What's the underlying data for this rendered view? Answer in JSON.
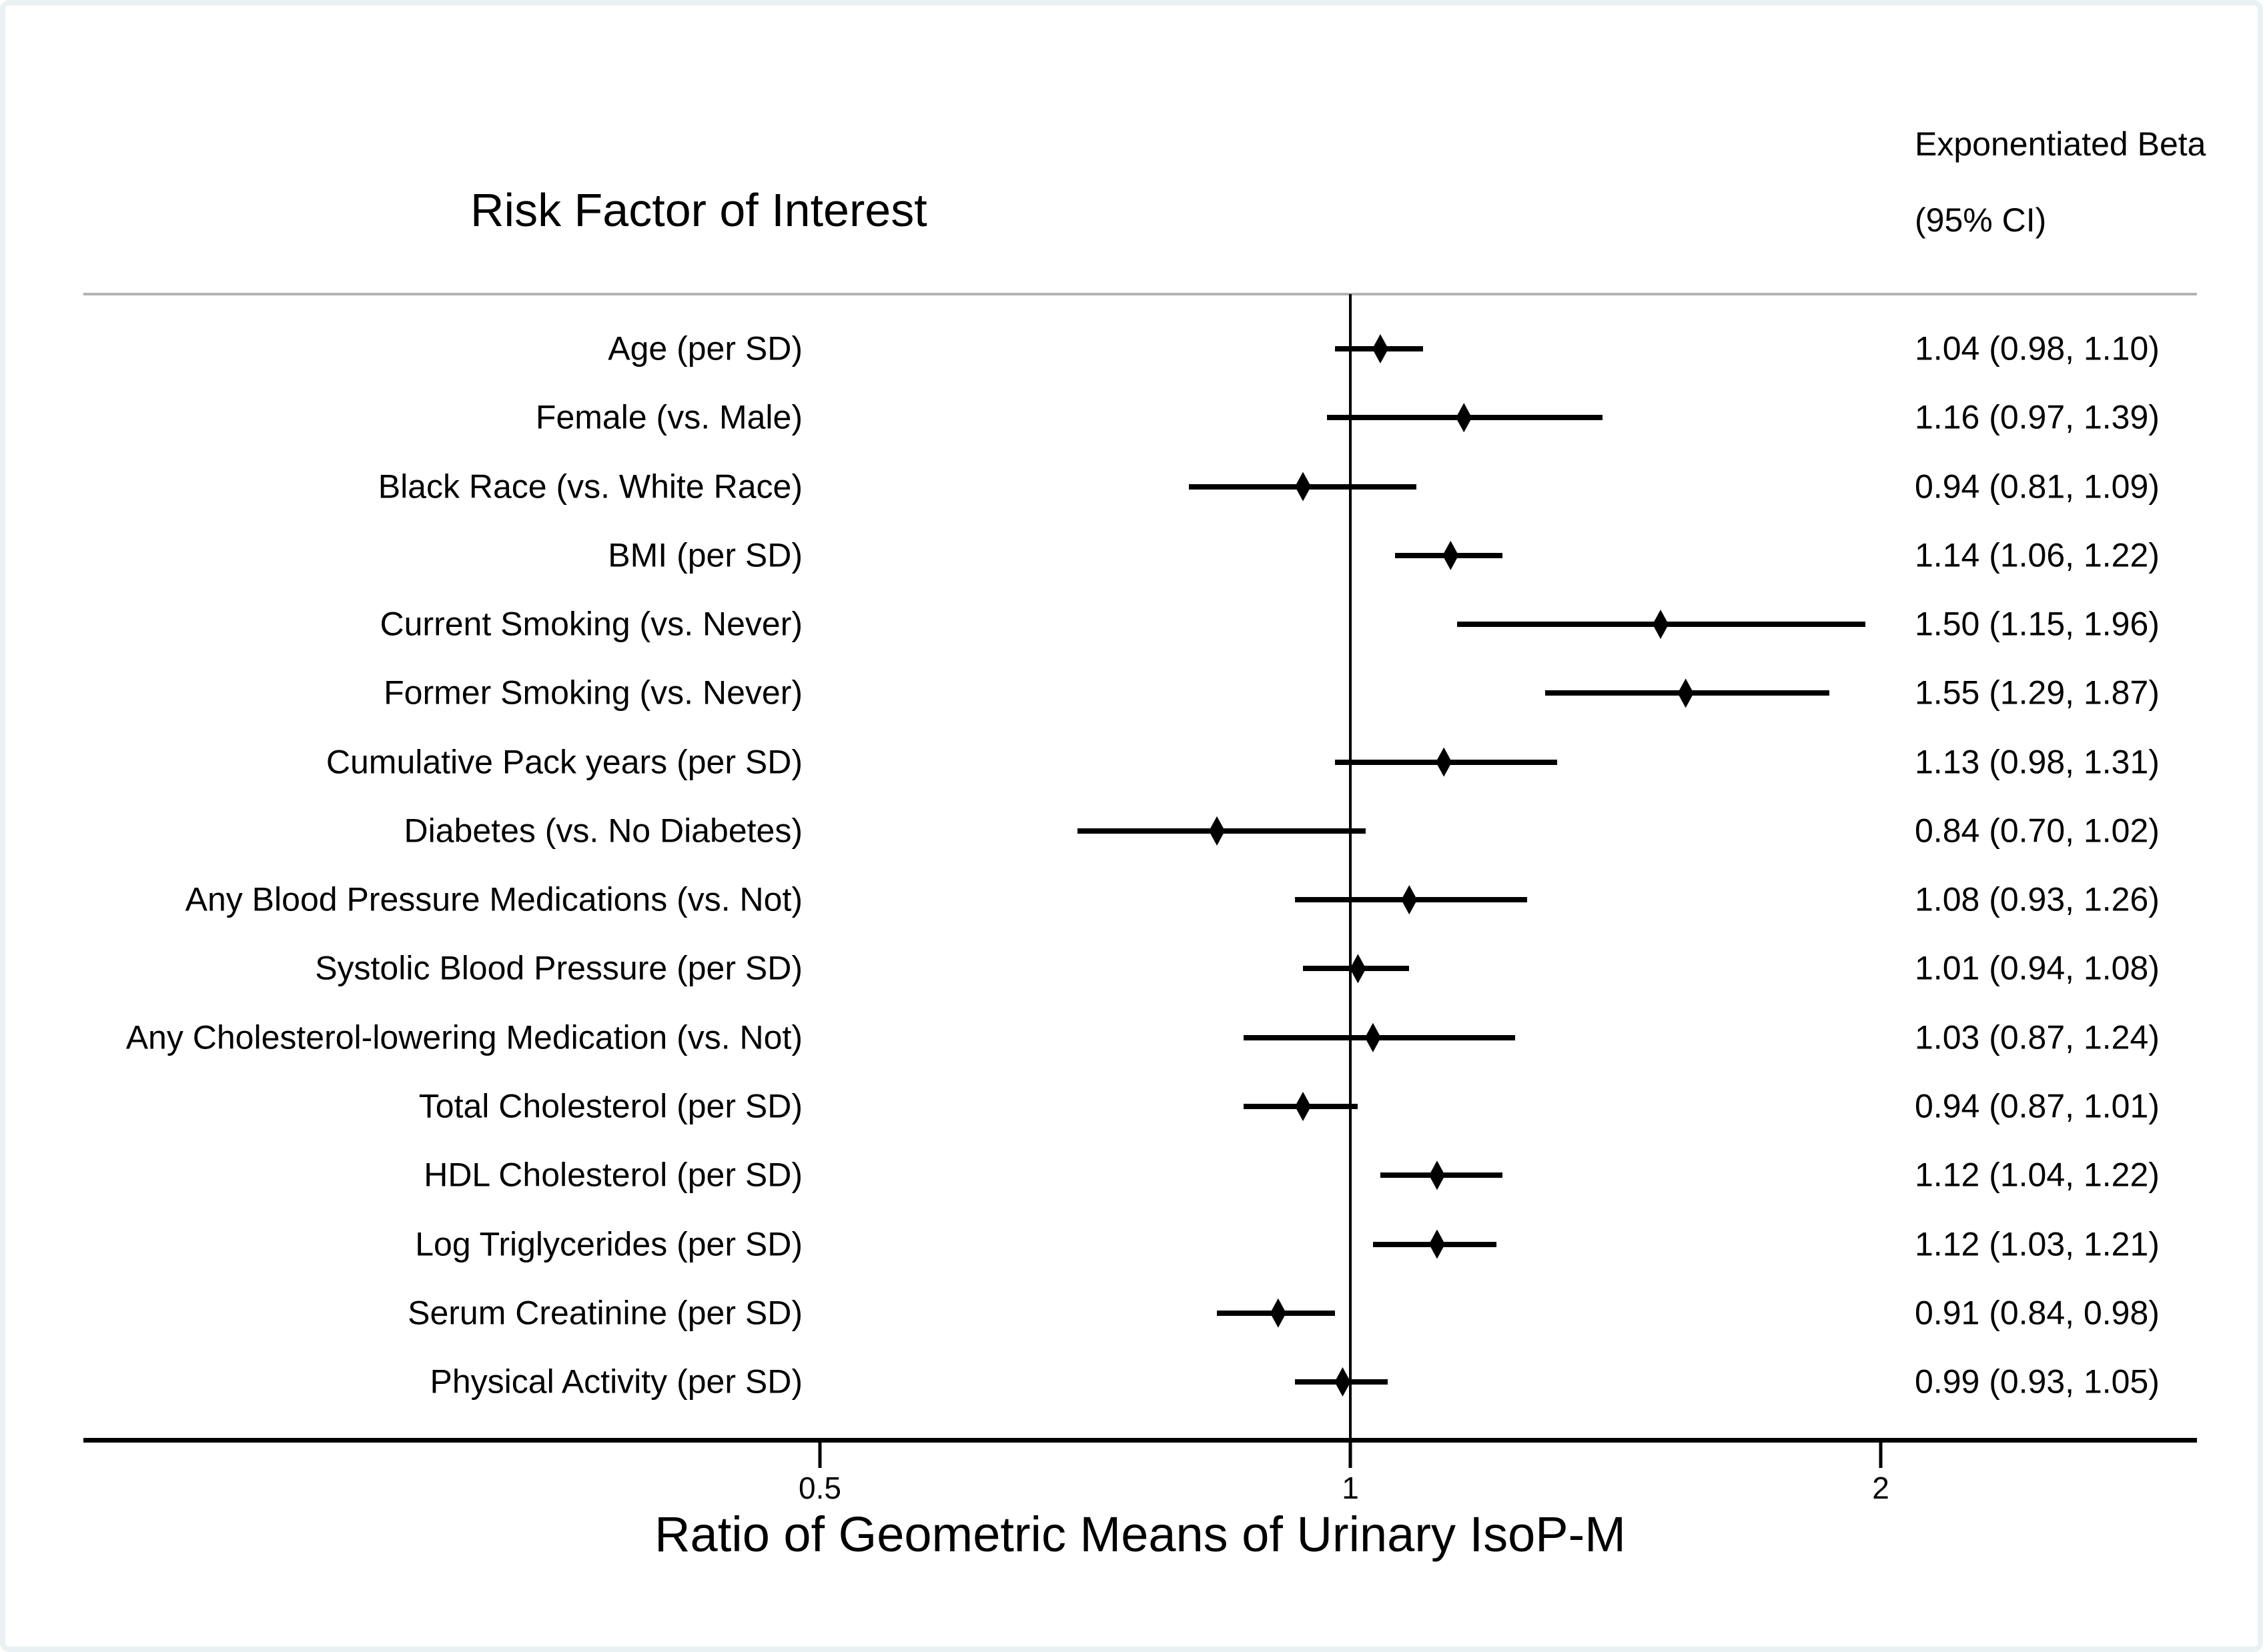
{
  "chart_data": {
    "type": "forest",
    "title_column_header": "Risk Factor of Interest",
    "value_column_header_line1": "Exponentiated Beta",
    "value_column_header_line2": "(95% CI)",
    "xlabel": "Ratio of Geometric Means of Urinary IsoP-M",
    "x_scale": "log2",
    "x_ticks": [
      0.5,
      1,
      2
    ],
    "x_tick_labels": [
      "0.5",
      "1",
      "2"
    ],
    "x_range": [
      0.38,
      3.0
    ],
    "reference_line": 1,
    "legend_position": "none",
    "grid": false,
    "marker": "filled-diamond",
    "rows": [
      {
        "label": "Age (per SD)",
        "estimate": 1.04,
        "ci_lower": 0.98,
        "ci_upper": 1.1,
        "display": "1.04 (0.98, 1.10)"
      },
      {
        "label": "Female (vs. Male)",
        "estimate": 1.16,
        "ci_lower": 0.97,
        "ci_upper": 1.39,
        "display": "1.16 (0.97, 1.39)"
      },
      {
        "label": "Black Race (vs. White Race)",
        "estimate": 0.94,
        "ci_lower": 0.81,
        "ci_upper": 1.09,
        "display": "0.94 (0.81, 1.09)"
      },
      {
        "label": "BMI (per SD)",
        "estimate": 1.14,
        "ci_lower": 1.06,
        "ci_upper": 1.22,
        "display": "1.14 (1.06, 1.22)"
      },
      {
        "label": "Current Smoking (vs. Never)",
        "estimate": 1.5,
        "ci_lower": 1.15,
        "ci_upper": 1.96,
        "display": "1.50 (1.15, 1.96)"
      },
      {
        "label": "Former Smoking (vs. Never)",
        "estimate": 1.55,
        "ci_lower": 1.29,
        "ci_upper": 1.87,
        "display": "1.55 (1.29, 1.87)"
      },
      {
        "label": "Cumulative Pack years (per SD)",
        "estimate": 1.13,
        "ci_lower": 0.98,
        "ci_upper": 1.31,
        "display": "1.13 (0.98, 1.31)"
      },
      {
        "label": "Diabetes (vs. No Diabetes)",
        "estimate": 0.84,
        "ci_lower": 0.7,
        "ci_upper": 1.02,
        "display": "0.84 (0.70, 1.02)"
      },
      {
        "label": "Any Blood Pressure Medications (vs. Not)",
        "estimate": 1.08,
        "ci_lower": 0.93,
        "ci_upper": 1.26,
        "display": "1.08 (0.93, 1.26)"
      },
      {
        "label": "Systolic Blood Pressure (per SD)",
        "estimate": 1.01,
        "ci_lower": 0.94,
        "ci_upper": 1.08,
        "display": "1.01 (0.94, 1.08)"
      },
      {
        "label": "Any Cholesterol-lowering Medication (vs. Not)",
        "estimate": 1.03,
        "ci_lower": 0.87,
        "ci_upper": 1.24,
        "display": "1.03 (0.87, 1.24)"
      },
      {
        "label": "Total Cholesterol (per SD)",
        "estimate": 0.94,
        "ci_lower": 0.87,
        "ci_upper": 1.01,
        "display": "0.94 (0.87, 1.01)"
      },
      {
        "label": "HDL Cholesterol (per SD)",
        "estimate": 1.12,
        "ci_lower": 1.04,
        "ci_upper": 1.22,
        "display": "1.12 (1.04, 1.22)"
      },
      {
        "label": "Log Triglycerides (per SD)",
        "estimate": 1.12,
        "ci_lower": 1.03,
        "ci_upper": 1.21,
        "display": "1.12 (1.03, 1.21)"
      },
      {
        "label": "Serum Creatinine (per SD)",
        "estimate": 0.91,
        "ci_lower": 0.84,
        "ci_upper": 0.98,
        "display": "0.91 (0.84, 0.98)"
      },
      {
        "label": "Physical Activity (per SD)",
        "estimate": 0.99,
        "ci_lower": 0.93,
        "ci_upper": 1.05,
        "display": "0.99 (0.93, 1.05)"
      }
    ]
  },
  "colors": {
    "text": "#000000",
    "line": "#000000",
    "separator": "#b3b3b3",
    "figure_border": "#e9f1f3",
    "background": "#ffffff"
  }
}
